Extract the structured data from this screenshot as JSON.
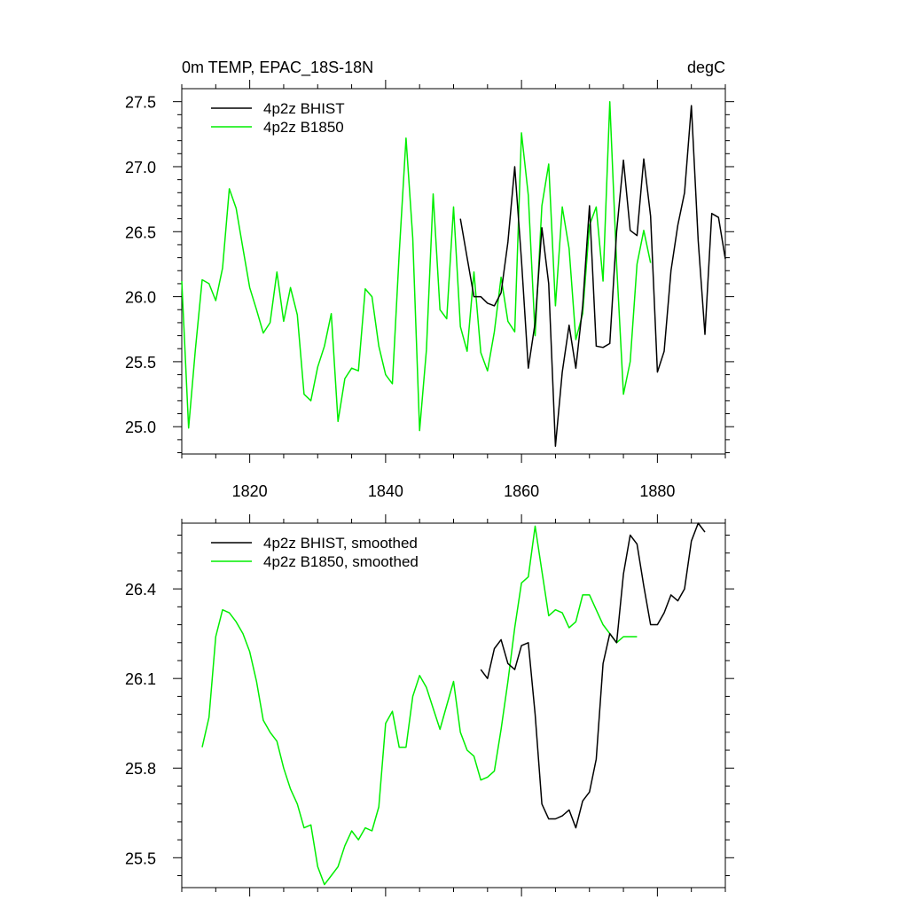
{
  "chart_data": [
    {
      "type": "line",
      "title": "0m TEMP, EPAC_18S-18N",
      "title_right": "degC",
      "xlim": [
        1810,
        1890
      ],
      "ylim": [
        24.79,
        27.6
      ],
      "yticks": [
        "25.0",
        "25.5",
        "26.0",
        "26.5",
        "27.0",
        "27.5"
      ],
      "xticks": [
        "1820",
        "1840",
        "1860",
        "1880"
      ],
      "grid": false,
      "legend_position": "top-left",
      "series": [
        {
          "name": "4p2z BHIST",
          "color": "#000000",
          "x": [
            1851,
            1852,
            1853,
            1854,
            1855,
            1856,
            1857,
            1858,
            1859,
            1860,
            1861,
            1862,
            1863,
            1864,
            1865,
            1866,
            1867,
            1868,
            1869,
            1870,
            1871,
            1872,
            1873,
            1874,
            1875,
            1876,
            1877,
            1878,
            1879,
            1880,
            1881,
            1882,
            1883,
            1884,
            1885,
            1886,
            1887,
            1888,
            1889,
            1890
          ],
          "y": [
            26.6,
            26.3,
            26.0,
            26.0,
            25.95,
            25.93,
            26.03,
            26.42,
            27.0,
            26.28,
            25.45,
            25.8,
            26.53,
            26.1,
            24.85,
            25.42,
            25.78,
            25.45,
            25.93,
            26.7,
            25.62,
            25.61,
            25.64,
            26.5,
            27.05,
            26.51,
            26.47,
            27.06,
            26.62,
            25.42,
            25.58,
            26.2,
            26.55,
            26.8,
            27.47,
            26.43,
            25.71,
            26.64,
            26.61,
            26.29
          ]
        },
        {
          "name": "4p2z B1850",
          "color": "#00ee00",
          "x": [
            1810,
            1811,
            1812,
            1813,
            1814,
            1815,
            1816,
            1817,
            1818,
            1819,
            1820,
            1821,
            1822,
            1823,
            1824,
            1825,
            1826,
            1827,
            1828,
            1829,
            1830,
            1831,
            1832,
            1833,
            1834,
            1835,
            1836,
            1837,
            1838,
            1839,
            1840,
            1841,
            1842,
            1843,
            1844,
            1845,
            1846,
            1847,
            1848,
            1849,
            1850,
            1851,
            1852,
            1853,
            1854,
            1855,
            1856,
            1857,
            1858,
            1859,
            1860,
            1861,
            1862,
            1863,
            1864,
            1865,
            1866,
            1867,
            1868,
            1869,
            1870,
            1871,
            1872,
            1873,
            1874,
            1875,
            1876,
            1877,
            1878,
            1879
          ],
          "y": [
            26.12,
            24.99,
            25.59,
            26.13,
            26.1,
            25.97,
            26.22,
            26.83,
            26.68,
            26.37,
            26.07,
            25.9,
            25.72,
            25.8,
            26.19,
            25.81,
            26.07,
            25.86,
            25.25,
            25.2,
            25.46,
            25.62,
            25.87,
            25.04,
            25.37,
            25.45,
            25.43,
            26.06,
            26.0,
            25.62,
            25.4,
            25.33,
            26.33,
            27.22,
            26.45,
            24.97,
            25.59,
            26.79,
            25.9,
            25.83,
            26.69,
            25.77,
            25.58,
            26.19,
            25.57,
            25.43,
            25.73,
            26.15,
            25.81,
            25.73,
            27.26,
            26.78,
            25.7,
            26.7,
            27.02,
            25.93,
            26.69,
            26.37,
            25.67,
            25.87,
            26.55,
            26.69,
            26.12,
            27.5,
            26.25,
            25.25,
            25.5,
            26.25,
            26.51,
            26.26
          ]
        }
      ]
    },
    {
      "type": "line",
      "title": "",
      "xlim": [
        1810,
        1890
      ],
      "ylim": [
        25.4,
        26.62
      ],
      "yticks": [
        "25.5",
        "25.8",
        "26.1",
        "26.4"
      ],
      "xticks": [],
      "grid": false,
      "legend_position": "top-left",
      "series": [
        {
          "name": "4p2z BHIST, smoothed",
          "color": "#000000",
          "x": [
            1854,
            1855,
            1856,
            1857,
            1858,
            1859,
            1860,
            1861,
            1862,
            1863,
            1864,
            1865,
            1866,
            1867,
            1868,
            1869,
            1870,
            1871,
            1872,
            1873,
            1874,
            1875,
            1876,
            1877,
            1878,
            1879,
            1880,
            1881,
            1882,
            1883,
            1884,
            1885,
            1886,
            1887
          ],
          "y": [
            26.13,
            26.1,
            26.2,
            26.23,
            26.15,
            26.13,
            26.21,
            26.22,
            25.98,
            25.68,
            25.63,
            25.63,
            25.64,
            25.66,
            25.6,
            25.69,
            25.72,
            25.83,
            26.15,
            26.25,
            26.22,
            26.45,
            26.58,
            26.55,
            26.41,
            26.28,
            26.28,
            26.32,
            26.38,
            26.36,
            26.4,
            26.56,
            26.62,
            26.59
          ]
        },
        {
          "name": "4p2z B1850, smoothed",
          "color": "#00ee00",
          "x": [
            1813,
            1814,
            1815,
            1816,
            1817,
            1818,
            1819,
            1820,
            1821,
            1822,
            1823,
            1824,
            1825,
            1826,
            1827,
            1828,
            1829,
            1830,
            1831,
            1832,
            1833,
            1834,
            1835,
            1836,
            1837,
            1838,
            1839,
            1840,
            1841,
            1842,
            1843,
            1844,
            1845,
            1846,
            1847,
            1848,
            1849,
            1850,
            1851,
            1852,
            1853,
            1854,
            1855,
            1856,
            1857,
            1858,
            1859,
            1860,
            1861,
            1862,
            1863,
            1864,
            1865,
            1866,
            1867,
            1868,
            1869,
            1870,
            1871,
            1872,
            1873,
            1874,
            1875,
            1876,
            1877
          ],
          "y": [
            25.87,
            25.97,
            26.24,
            26.33,
            26.32,
            26.29,
            26.25,
            26.19,
            26.09,
            25.96,
            25.92,
            25.89,
            25.8,
            25.73,
            25.68,
            25.6,
            25.61,
            25.47,
            25.41,
            25.44,
            25.47,
            25.54,
            25.59,
            25.56,
            25.6,
            25.59,
            25.67,
            25.95,
            25.99,
            25.87,
            25.87,
            26.04,
            26.11,
            26.07,
            26.0,
            25.93,
            26.01,
            26.09,
            25.92,
            25.86,
            25.84,
            25.76,
            25.77,
            25.79,
            25.93,
            26.09,
            26.27,
            26.42,
            26.44,
            26.61,
            26.46,
            26.31,
            26.33,
            26.32,
            26.27,
            26.29,
            26.38,
            26.38,
            26.33,
            26.28,
            26.25,
            26.22,
            26.24,
            26.24,
            26.24
          ]
        }
      ]
    }
  ]
}
